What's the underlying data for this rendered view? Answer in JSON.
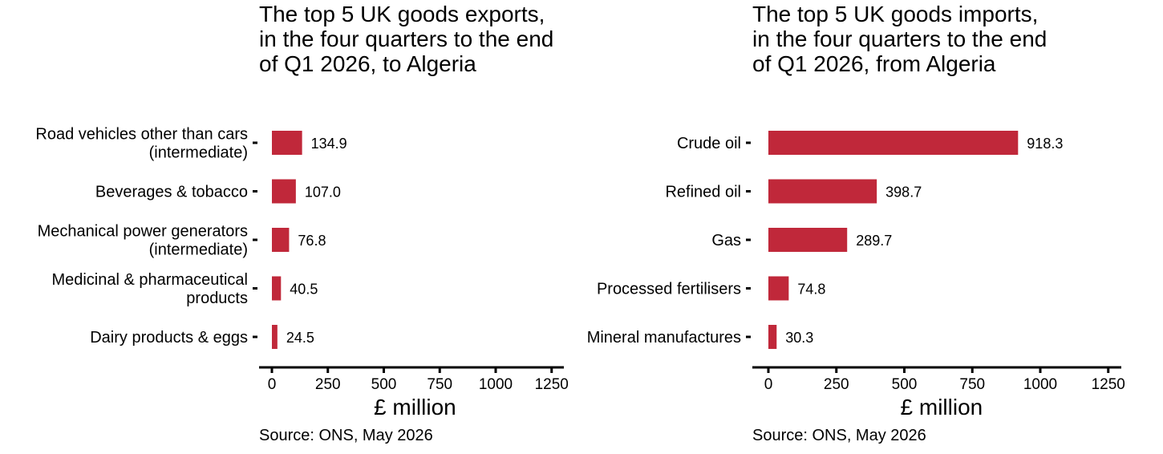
{
  "colors": {
    "bar": "#C0283A",
    "axis": "#000000",
    "text": "#000000"
  },
  "charts": [
    {
      "title": "The top 5 UK goods exports, in the four quarters to the end of Q1 2026, to Algeria",
      "source": "Source: ONS, May 2026",
      "xlabel": "£ million"
    },
    {
      "title": "The top 5 UK goods imports, in the four quarters to the end of Q1 2026, from Algeria",
      "source": "Source: ONS, May 2026",
      "xlabel": "£ million"
    }
  ],
  "chart_data": [
    {
      "type": "bar",
      "orientation": "horizontal",
      "title": "The top 5 UK goods exports, in the four quarters to the end of Q1 2026, to Algeria",
      "categories": [
        [
          "Road vehicles other than cars",
          "(intermediate)"
        ],
        [
          "Beverages & tobacco"
        ],
        [
          "Mechanical power generators",
          "(intermediate)"
        ],
        [
          "Medicinal & pharmaceutical",
          "products"
        ],
        [
          "Dairy products & eggs"
        ]
      ],
      "values": [
        134.9,
        107.0,
        76.8,
        40.5,
        24.5
      ],
      "value_labels": [
        "134.9",
        "107.0",
        "76.8",
        "40.5",
        "24.5"
      ],
      "xlabel": "£ million",
      "ylabel": "",
      "xlim": [
        0,
        1250
      ],
      "xticks": [
        0,
        250,
        500,
        750,
        1000,
        1250
      ],
      "xtick_labels": [
        "0",
        "250",
        "500",
        "750",
        "1000",
        "1250"
      ],
      "grid": false,
      "source": "Source: ONS, May 2026"
    },
    {
      "type": "bar",
      "orientation": "horizontal",
      "title": "The top 5 UK goods imports, in the four quarters to the end of Q1 2026, from Algeria",
      "categories": [
        [
          "Crude oil"
        ],
        [
          "Refined oil"
        ],
        [
          "Gas"
        ],
        [
          "Processed fertilisers"
        ],
        [
          "Mineral manufactures"
        ]
      ],
      "values": [
        918.3,
        398.7,
        289.7,
        74.8,
        30.3
      ],
      "value_labels": [
        "918.3",
        "398.7",
        "289.7",
        "74.8",
        "30.3"
      ],
      "xlabel": "£ million",
      "ylabel": "",
      "xlim": [
        0,
        1250
      ],
      "xticks": [
        0,
        250,
        500,
        750,
        1000,
        1250
      ],
      "xtick_labels": [
        "0",
        "250",
        "500",
        "750",
        "1000",
        "1250"
      ],
      "grid": false,
      "source": "Source: ONS, May 2026"
    }
  ]
}
